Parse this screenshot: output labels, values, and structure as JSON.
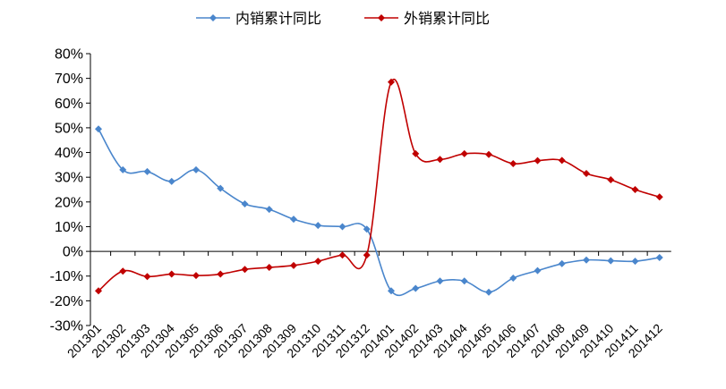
{
  "chart_data": {
    "type": "line",
    "title": "",
    "xlabel": "",
    "ylabel": "",
    "ylim": [
      -30,
      80
    ],
    "yticks": [
      -30,
      -20,
      -10,
      0,
      10,
      20,
      30,
      40,
      50,
      60,
      70,
      80
    ],
    "y_tick_suffix": "%",
    "legend_position": "top-center",
    "grid": false,
    "categories": [
      "201301",
      "201302",
      "201303",
      "201304",
      "201305",
      "201306",
      "201307",
      "201308",
      "201309",
      "201310",
      "201311",
      "201312",
      "201401",
      "201402",
      "201403",
      "201404",
      "201405",
      "201406",
      "201407",
      "201408",
      "201409",
      "201410",
      "201411",
      "201412"
    ],
    "series": [
      {
        "name": "内销累计同比",
        "color": "#4a86cc",
        "marker": "diamond",
        "values": [
          49.5,
          33,
          32.3,
          28.3,
          33,
          25.5,
          19.2,
          17,
          13,
          10.5,
          10,
          9,
          -16,
          -15,
          -12,
          -12,
          -16.5,
          -10.8,
          -7.8,
          -5,
          -3.5,
          -3.8,
          -4,
          -2.5
        ]
      },
      {
        "name": "外销累计同比",
        "color": "#c00000",
        "marker": "diamond",
        "values": [
          -16,
          -8,
          -10.2,
          -9.2,
          -9.8,
          -9.2,
          -7.3,
          -6.5,
          -5.7,
          -4,
          -1.5,
          -1.5,
          68.5,
          39.5,
          37.2,
          39.5,
          39.2,
          35.5,
          36.7,
          36.8,
          31.5,
          29,
          25,
          22
        ]
      }
    ]
  }
}
